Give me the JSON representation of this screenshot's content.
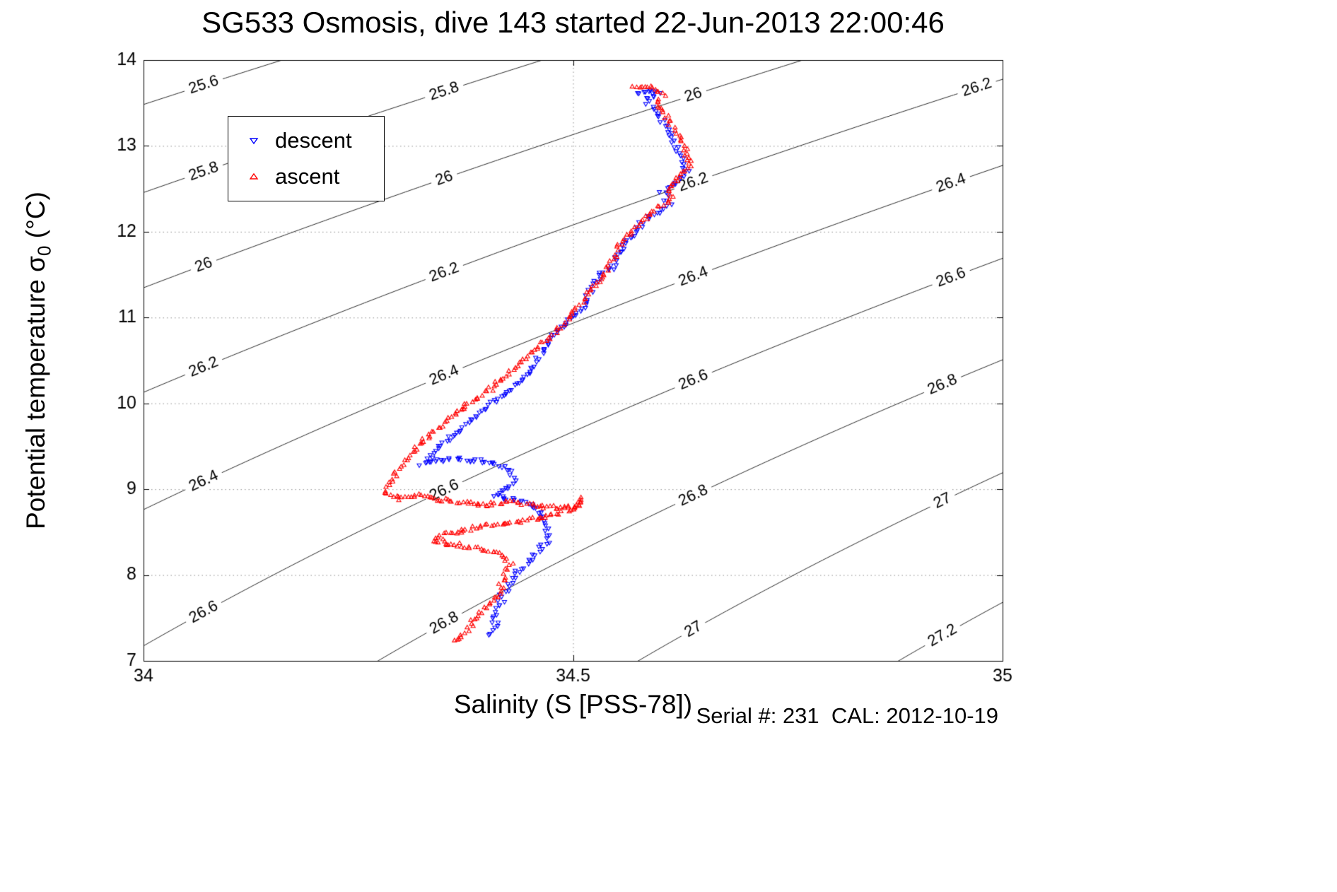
{
  "footer": {
    "text": "Serial #: 231  CAL: 2012-10-19"
  },
  "chart_data": {
    "type": "scatter",
    "title": "SG533 Osmosis, dive 143 started 22-Jun-2013 22:00:46",
    "xlabel": "Salinity (S [PSS-78])",
    "ylabel": "Potential temperature σ0 (°C)",
    "ylabel_parts": {
      "pre": "Potential temperature σ",
      "sub": "0",
      "post": " (°C)"
    },
    "xlim": [
      34,
      35
    ],
    "ylim": [
      7,
      14
    ],
    "x_ticks": {
      "values": [
        34,
        34.5,
        35
      ],
      "labels": [
        "34",
        "34.5",
        "35"
      ]
    },
    "y_ticks": {
      "values": [
        7,
        8,
        9,
        10,
        11,
        12,
        13,
        14
      ],
      "labels": [
        "7",
        "8",
        "9",
        "10",
        "11",
        "12",
        "13",
        "14"
      ]
    },
    "grid": {
      "x": [
        34.5
      ],
      "y": [
        8,
        9,
        10,
        11,
        12,
        13
      ],
      "style": "dotted"
    },
    "legend": {
      "position": "upper-left-inside",
      "entries": [
        "descent",
        "ascent"
      ]
    },
    "series": [
      {
        "name": "descent",
        "marker": "triangle-down",
        "color": "#0000ff",
        "points": [
          [
            34.575,
            13.6
          ],
          [
            34.59,
            13.66
          ],
          [
            34.6,
            13.62
          ],
          [
            34.585,
            13.55
          ],
          [
            34.595,
            13.4
          ],
          [
            34.61,
            13.2
          ],
          [
            34.62,
            13.0
          ],
          [
            34.628,
            12.85
          ],
          [
            34.632,
            12.7
          ],
          [
            34.618,
            12.55
          ],
          [
            34.605,
            12.45
          ],
          [
            34.612,
            12.32
          ],
          [
            34.595,
            12.2
          ],
          [
            34.58,
            12.1
          ],
          [
            34.572,
            11.98
          ],
          [
            34.56,
            11.86
          ],
          [
            34.552,
            11.72
          ],
          [
            34.548,
            11.6
          ],
          [
            34.53,
            11.5
          ],
          [
            34.525,
            11.38
          ],
          [
            34.518,
            11.25
          ],
          [
            34.51,
            11.1
          ],
          [
            34.495,
            10.97
          ],
          [
            34.482,
            10.83
          ],
          [
            34.47,
            10.7
          ],
          [
            34.462,
            10.56
          ],
          [
            34.455,
            10.44
          ],
          [
            34.445,
            10.33
          ],
          [
            34.432,
            10.2
          ],
          [
            34.415,
            10.08
          ],
          [
            34.398,
            9.95
          ],
          [
            34.382,
            9.82
          ],
          [
            34.368,
            9.68
          ],
          [
            34.352,
            9.55
          ],
          [
            34.338,
            9.42
          ],
          [
            34.325,
            9.3
          ],
          [
            34.34,
            9.33
          ],
          [
            34.362,
            9.35
          ],
          [
            34.385,
            9.33
          ],
          [
            34.408,
            9.3
          ],
          [
            34.425,
            9.22
          ],
          [
            34.432,
            9.1
          ],
          [
            34.42,
            8.98
          ],
          [
            34.408,
            8.93
          ],
          [
            34.428,
            8.88
          ],
          [
            34.45,
            8.82
          ],
          [
            34.462,
            8.72
          ],
          [
            34.468,
            8.58
          ],
          [
            34.472,
            8.45
          ],
          [
            34.463,
            8.32
          ],
          [
            34.452,
            8.18
          ],
          [
            34.438,
            8.05
          ],
          [
            34.428,
            7.92
          ],
          [
            34.42,
            7.8
          ],
          [
            34.415,
            7.66
          ],
          [
            34.408,
            7.52
          ],
          [
            34.412,
            7.4
          ],
          [
            34.402,
            7.3
          ]
        ]
      },
      {
        "name": "ascent",
        "marker": "triangle-up",
        "color": "#ff0000",
        "points": [
          [
            34.572,
            13.68
          ],
          [
            34.59,
            13.7
          ],
          [
            34.605,
            13.62
          ],
          [
            34.598,
            13.48
          ],
          [
            34.612,
            13.3
          ],
          [
            34.625,
            13.1
          ],
          [
            34.632,
            12.92
          ],
          [
            34.638,
            12.78
          ],
          [
            34.625,
            12.65
          ],
          [
            34.61,
            12.52
          ],
          [
            34.615,
            12.4
          ],
          [
            34.598,
            12.28
          ],
          [
            34.585,
            12.15
          ],
          [
            34.57,
            12.02
          ],
          [
            34.558,
            11.9
          ],
          [
            34.552,
            11.78
          ],
          [
            34.545,
            11.65
          ],
          [
            34.538,
            11.52
          ],
          [
            34.528,
            11.4
          ],
          [
            34.518,
            11.28
          ],
          [
            34.508,
            11.15
          ],
          [
            34.498,
            11.02
          ],
          [
            34.485,
            10.9
          ],
          [
            34.47,
            10.76
          ],
          [
            34.455,
            10.62
          ],
          [
            34.44,
            10.48
          ],
          [
            34.425,
            10.35
          ],
          [
            34.41,
            10.22
          ],
          [
            34.395,
            10.1
          ],
          [
            34.378,
            9.98
          ],
          [
            34.36,
            9.86
          ],
          [
            34.345,
            9.73
          ],
          [
            34.33,
            9.6
          ],
          [
            34.316,
            9.46
          ],
          [
            34.304,
            9.32
          ],
          [
            34.295,
            9.18
          ],
          [
            34.285,
            9.05
          ],
          [
            34.28,
            8.95
          ],
          [
            34.298,
            8.9
          ],
          [
            34.32,
            8.93
          ],
          [
            34.345,
            8.88
          ],
          [
            34.372,
            8.84
          ],
          [
            34.4,
            8.82
          ],
          [
            34.428,
            8.86
          ],
          [
            34.455,
            8.82
          ],
          [
            34.48,
            8.78
          ],
          [
            34.505,
            8.8
          ],
          [
            34.512,
            8.9
          ],
          [
            34.498,
            8.75
          ],
          [
            34.468,
            8.68
          ],
          [
            34.435,
            8.62
          ],
          [
            34.402,
            8.58
          ],
          [
            34.372,
            8.52
          ],
          [
            34.348,
            8.46
          ],
          [
            34.338,
            8.4
          ],
          [
            34.36,
            8.36
          ],
          [
            34.388,
            8.32
          ],
          [
            34.415,
            8.26
          ],
          [
            34.428,
            8.15
          ],
          [
            34.422,
            8.02
          ],
          [
            34.416,
            7.9
          ],
          [
            34.42,
            7.8
          ],
          [
            34.405,
            7.68
          ],
          [
            34.392,
            7.56
          ],
          [
            34.382,
            7.44
          ],
          [
            34.375,
            7.32
          ],
          [
            34.362,
            7.24
          ]
        ]
      }
    ],
    "contours": {
      "levels": [
        25.6,
        25.8,
        26,
        26.2,
        26.4,
        26.6,
        26.8,
        27,
        27.2
      ],
      "labels": [
        "25.6",
        "25.8",
        "26",
        "26.2",
        "26.4",
        "26.6",
        "26.8",
        "27",
        "27.2"
      ],
      "color": "#000000",
      "model": {
        "sigma_ref": 26.55,
        "s_ref": 34.5,
        "t_ref": 10,
        "dsig_ds": 0.66,
        "dsig_dt": -0.154,
        "d2sig_dt2": -0.0069
      },
      "label_positions": {
        "25.6": [
          0.07
        ],
        "25.8": [
          0.07,
          0.35
        ],
        "26": [
          0.07,
          0.35,
          0.64
        ],
        "26.2": [
          0.07,
          0.35,
          0.64,
          0.97
        ],
        "26.4": [
          0.07,
          0.35,
          0.64,
          0.94
        ],
        "26.6": [
          0.07,
          0.35,
          0.64,
          0.94
        ],
        "26.8": [
          0.35,
          0.64,
          0.93
        ],
        "27": [
          0.64,
          0.93
        ],
        "27.2": [
          0.93
        ]
      }
    }
  }
}
